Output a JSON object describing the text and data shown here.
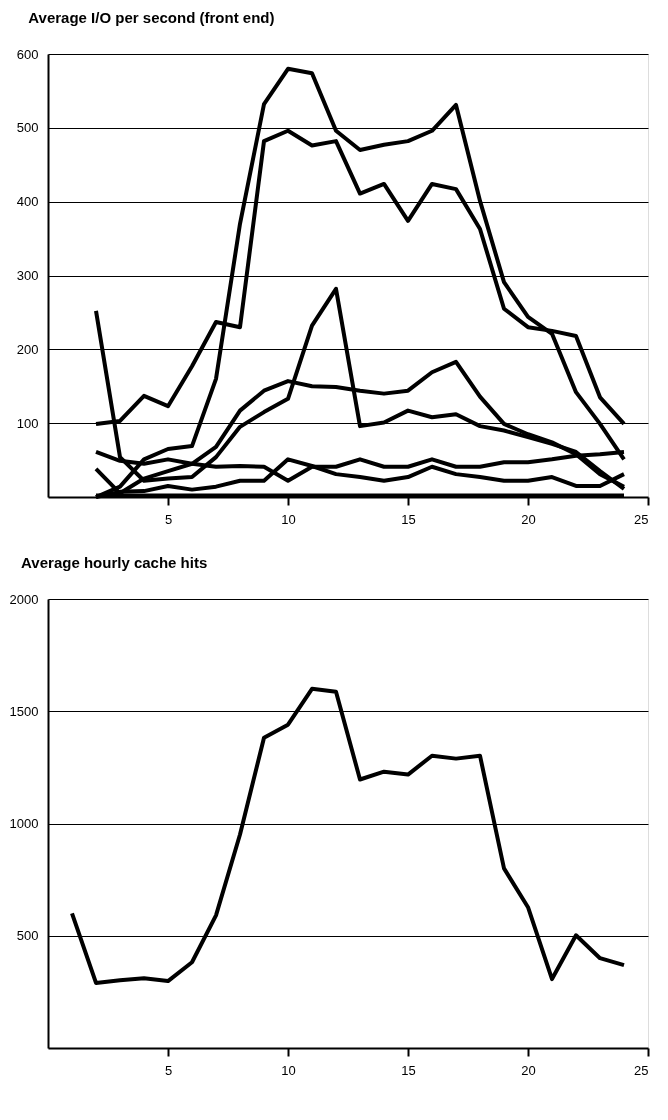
{
  "chart_data": [
    {
      "type": "line",
      "title": "Average I/O per second (front end)",
      "x": [
        2,
        3,
        4,
        5,
        6,
        7,
        8,
        9,
        10,
        11,
        12,
        13,
        14,
        15,
        16,
        17,
        18,
        19,
        20,
        21,
        22,
        23,
        24
      ],
      "series": [
        {
          "color": "#000000",
          "values": [
            0,
            14,
            51,
            65,
            69,
            160,
            370,
            532,
            580,
            574,
            496,
            470,
            477,
            482,
            496,
            531,
            401,
            291,
            244,
            221,
            142,
            99,
            51
          ]
        },
        {
          "color": "#000000",
          "values": [
            99,
            103,
            137,
            123,
            177,
            237,
            230,
            482,
            496,
            476,
            482,
            411,
            424,
            374,
            424,
            417,
            363,
            255,
            230,
            225,
            218,
            135,
            99
          ]
        },
        {
          "color": "#000000",
          "values": [
            252,
            54,
            22,
            25,
            27,
            54,
            95,
            115,
            133,
            232,
            282,
            96,
            101,
            117,
            108,
            112,
            96,
            90,
            81,
            72,
            61,
            35,
            11
          ]
        },
        {
          "color": "#000000",
          "values": [
            38,
            5,
            25,
            35,
            45,
            68,
            117,
            144,
            157,
            150,
            149,
            144,
            140,
            144,
            169,
            183,
            136,
            99,
            85,
            74,
            58,
            31,
            14
          ]
        },
        {
          "color": "#000000",
          "values": [
            61,
            49,
            45,
            51,
            45,
            41,
            42,
            41,
            22,
            41,
            41,
            51,
            41,
            41,
            51,
            41,
            41,
            47,
            47,
            51,
            56,
            58,
            61
          ]
        },
        {
          "color": "#000000",
          "values": [
            0,
            7,
            8,
            15,
            10,
            14,
            22,
            22,
            51,
            42,
            31,
            27,
            22,
            27,
            41,
            31,
            27,
            22,
            22,
            27,
            15,
            15,
            31
          ]
        },
        {
          "color": "#000000",
          "values": [
            2,
            2,
            2,
            2,
            2,
            2,
            2,
            2,
            2,
            2,
            2,
            2,
            2,
            2,
            2,
            2,
            2,
            2,
            2,
            2,
            2,
            2,
            2
          ]
        }
      ],
      "xlim": [
        0,
        25
      ],
      "xticks": [
        5,
        10,
        15,
        20,
        25
      ],
      "ylim": [
        0,
        600
      ],
      "yticks": [
        100,
        200,
        300,
        400,
        500,
        600
      ],
      "grid": "y",
      "legend": false,
      "marker": "none",
      "line_style": "solid"
    },
    {
      "type": "line",
      "title": "Average hourly cache hits",
      "x": [
        1,
        2,
        3,
        4,
        5,
        6,
        7,
        8,
        9,
        10,
        11,
        12,
        13,
        14,
        15,
        16,
        17,
        18,
        19,
        20,
        21,
        22,
        23,
        24
      ],
      "series": [
        {
          "color": "#000000",
          "values": [
            600,
            290,
            302,
            311,
            298,
            382,
            591,
            951,
            1382,
            1440,
            1600,
            1587,
            1196,
            1231,
            1218,
            1302,
            1289,
            1302,
            800,
            627,
            307,
            502,
            400,
            369
          ]
        }
      ],
      "xlim": [
        0,
        25
      ],
      "xticks": [
        5,
        10,
        15,
        20,
        25
      ],
      "ylim": [
        0,
        2000
      ],
      "yticks": [
        500,
        1000,
        1500,
        2000
      ],
      "grid": "y",
      "legend": false,
      "marker": "none",
      "line_style": "solid"
    }
  ]
}
